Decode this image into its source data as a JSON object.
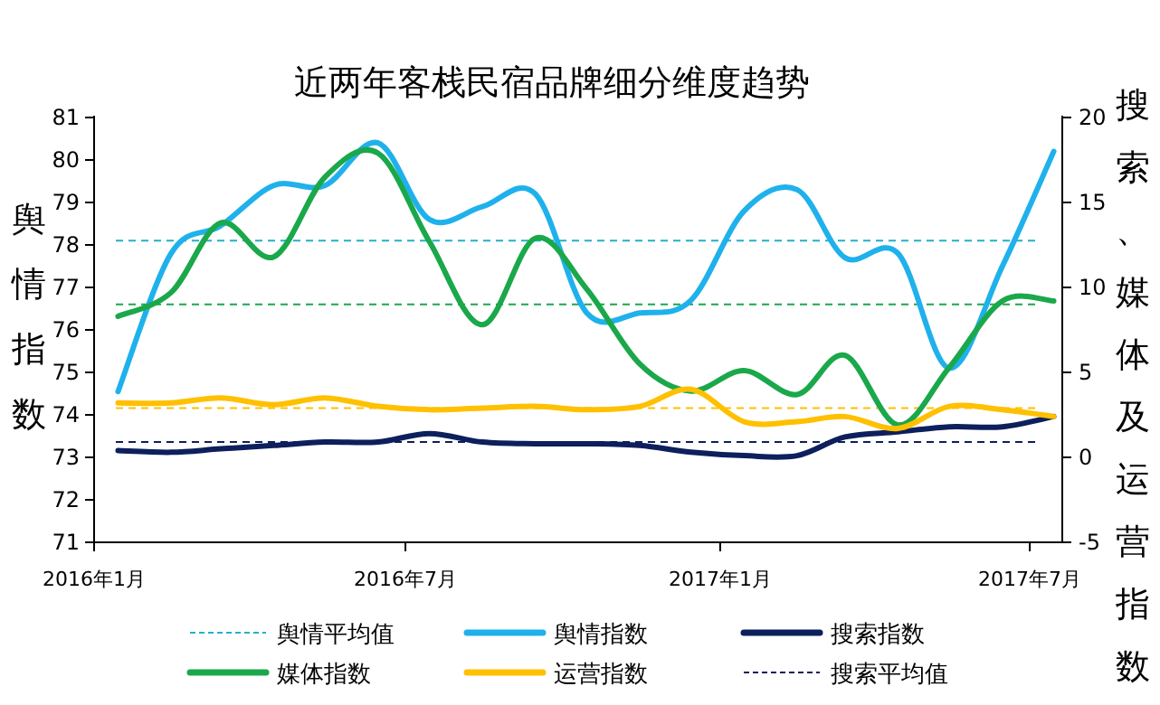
{
  "chart_data": {
    "type": "line",
    "title": "近两年客栈民宿品牌细分维度趋势",
    "ylabel": "舆情指数",
    "y2label": "搜索、媒体及运营指数",
    "x": [
      "2016-01-15",
      "2016-02-15",
      "2016-03-15",
      "2016-04-15",
      "2016-05-15",
      "2016-06-15",
      "2016-07-15",
      "2016-08-15",
      "2016-09-15",
      "2016-10-15",
      "2016-11-15",
      "2016-12-15",
      "2017-01-15",
      "2017-02-15",
      "2017-03-15",
      "2017-04-15",
      "2017-05-15",
      "2017-06-15",
      "2017-07-15"
    ],
    "xlim": [
      "2016-01-01",
      "2017-07-20"
    ],
    "xticks": [
      {
        "value": "2016-01-01",
        "label": "2016年1月"
      },
      {
        "value": "2016-07-01",
        "label": "2016年7月"
      },
      {
        "value": "2017-01-01",
        "label": "2017年1月"
      },
      {
        "value": "2017-07-01",
        "label": "2017年7月"
      }
    ],
    "ylim": [
      71,
      81
    ],
    "yticks": [
      71,
      72,
      73,
      74,
      75,
      76,
      77,
      78,
      79,
      80,
      81
    ],
    "y2lim": [
      -5,
      20
    ],
    "y2ticks": [
      -5,
      0,
      5,
      10,
      15,
      20
    ],
    "series": [
      {
        "name": "舆情指数",
        "color": "#1fb1ec",
        "axis": "y",
        "values": [
          74.55,
          77.8,
          78.45,
          79.4,
          79.4,
          80.4,
          78.6,
          78.9,
          79.2,
          76.4,
          76.4,
          76.7,
          78.8,
          79.3,
          77.7,
          77.8,
          75.1,
          77.5,
          80.2
        ]
      },
      {
        "name": "搜索指数",
        "color": "#0d1f5c",
        "axis": "y2",
        "values": [
          0.4,
          0.3,
          0.5,
          0.7,
          0.9,
          0.9,
          1.4,
          0.9,
          0.8,
          0.8,
          0.7,
          0.3,
          0.1,
          0.1,
          1.2,
          1.5,
          1.8,
          1.8,
          2.4
        ]
      },
      {
        "name": "媒体指数",
        "color": "#1aa84a",
        "axis": "y2",
        "values": [
          8.3,
          9.7,
          13.8,
          11.8,
          16.5,
          17.9,
          12.7,
          7.8,
          12.9,
          9.9,
          5.5,
          3.9,
          5.1,
          3.7,
          6.0,
          1.9,
          5.3,
          9.2,
          9.2
        ]
      },
      {
        "name": "运营指数",
        "color": "#ffc000",
        "axis": "y2",
        "values": [
          3.2,
          3.2,
          3.5,
          3.1,
          3.5,
          3.0,
          2.8,
          2.9,
          3.0,
          2.8,
          3.0,
          4.0,
          2.1,
          2.1,
          2.4,
          1.7,
          3.0,
          2.8,
          2.4
        ]
      }
    ],
    "ref_lines": [
      {
        "axis": "y",
        "value": 78.1,
        "label": "舆情平均值",
        "color": "#22b0c8",
        "line_style": "dashed"
      },
      {
        "axis": "y2",
        "value": 9.0,
        "color": "#1aa84a",
        "line_style": "dashed"
      },
      {
        "axis": "y2",
        "value": 2.9,
        "color": "#ffc000",
        "line_style": "dashed"
      },
      {
        "axis": "y2",
        "value": 0.9,
        "label": "搜索平均值",
        "color": "#0d1f5c",
        "line_style": "dashed"
      }
    ],
    "legend": "bottom"
  }
}
